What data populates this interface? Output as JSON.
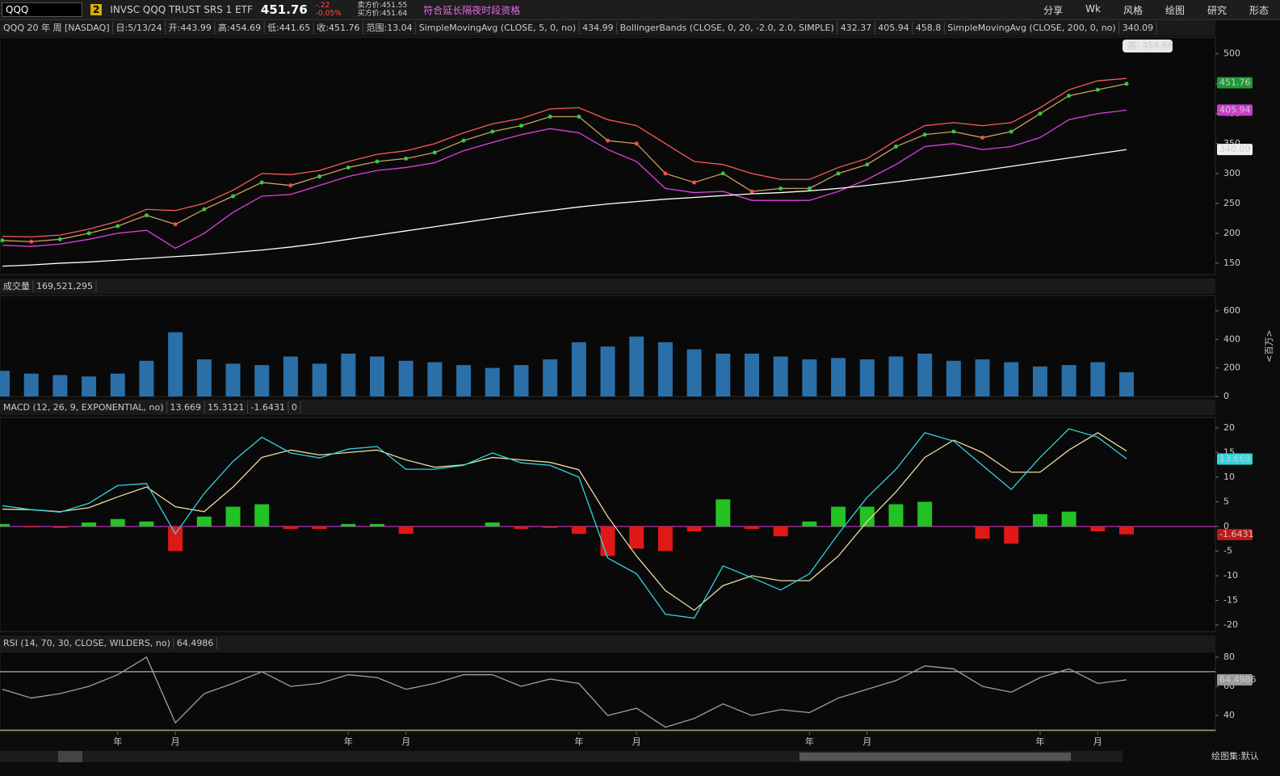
{
  "toolbar": {
    "symbol": "QQQ",
    "link": "2",
    "name": "INVSC QQQ TRUST SRS 1 ETF",
    "last": "451.76",
    "change": "-.22",
    "change_pct": "-0.05%",
    "ask": "卖方价:451.55",
    "bid": "买方价:451.64",
    "ext_hours": "符合延长隔夜时段资格",
    "buttons": [
      "分享",
      "Wk",
      "风格",
      "绘图",
      "研究",
      "形态"
    ]
  },
  "footer": {
    "drawing_set": "绘图集:默认"
  },
  "chart_data": [
    {
      "type": "line",
      "header": {
        "items": [
          {
            "text": "QQQ 20 年 周 [NASDAQ]",
            "color": "#ffffff"
          },
          {
            "text": "日:5/13/24",
            "color": "#cfcfcf"
          },
          {
            "text": "开:443.99",
            "color": "#cfcfcf"
          },
          {
            "text": "高:454.69",
            "color": "#cfcfcf"
          },
          {
            "text": "低:441.65",
            "color": "#cfcfcf"
          },
          {
            "text": "收:451.76",
            "color": "#cfcfcf"
          },
          {
            "text": "范围:13.04",
            "color": "#cfcfcf"
          },
          {
            "text": "SimpleMovingAvg (CLOSE, 5, 0, no)",
            "color": "#e040e0"
          },
          {
            "text": "434.99",
            "color": "#e040e0"
          },
          {
            "text": "BollingerBands (CLOSE, 0, 20, -2.0, 2.0, SIMPLE)",
            "color": "#2fd6e0"
          },
          {
            "text": "432.37",
            "color": "#2fd6e0"
          },
          {
            "text": "405.94",
            "color": "#e040e0"
          },
          {
            "text": "458.8",
            "color": "#ff5a5a"
          },
          {
            "text": "SimpleMovingAvg (CLOSE, 200, 0, no)",
            "color": "#ffffff"
          },
          {
            "text": "340.09",
            "color": "#ffffff"
          }
        ]
      },
      "high_label": "高: 454.69",
      "up_color": "#2ecc40",
      "down_color": "#ff4b4b",
      "ylim": [
        131,
        528
      ],
      "yticks": [
        150,
        200,
        250,
        300,
        350,
        400,
        450,
        500
      ],
      "tags": [
        {
          "value": 451.76,
          "color": "#1f9a35",
          "text_color": "#ffffff"
        },
        {
          "value": 405.94,
          "color": "#c83cc8",
          "text_color": "#ffffff"
        },
        {
          "value": 340.09,
          "color": "#f0f0f0",
          "text_color": "#111111"
        }
      ],
      "series": [
        {
          "color": "#ff5a5a",
          "values": [
            195,
            194,
            197,
            207,
            220,
            240,
            238,
            250,
            272,
            300,
            298,
            305,
            320,
            332,
            338,
            350,
            368,
            383,
            392,
            408,
            410,
            390,
            380,
            350,
            320,
            315,
            300,
            290,
            290,
            310,
            325,
            355,
            380,
            385,
            380,
            385,
            410,
            440,
            455,
            459
          ]
        },
        {
          "color": "#e040e0",
          "values": [
            180,
            178,
            182,
            190,
            200,
            205,
            175,
            200,
            235,
            262,
            265,
            280,
            295,
            305,
            310,
            318,
            338,
            352,
            365,
            375,
            368,
            340,
            320,
            275,
            268,
            270,
            255,
            255,
            255,
            270,
            290,
            315,
            345,
            350,
            340,
            345,
            360,
            390,
            400,
            406
          ]
        },
        {
          "color": "#ffffff",
          "values": [
            145,
            147,
            150,
            152,
            155,
            158,
            161,
            164,
            168,
            172,
            177,
            183,
            190,
            197,
            204,
            211,
            218,
            225,
            232,
            238,
            244,
            249,
            253,
            257,
            260,
            263,
            266,
            268,
            271,
            275,
            280,
            286,
            292,
            298,
            305,
            312,
            319,
            326,
            333,
            340
          ]
        },
        {
          "color": "#c8a060",
          "values": [
            188,
            186,
            190,
            200,
            212,
            230,
            215,
            240,
            262,
            285,
            280,
            295,
            310,
            320,
            325,
            335,
            355,
            370,
            380,
            395,
            395,
            355,
            350,
            300,
            285,
            300,
            270,
            275,
            275,
            300,
            315,
            345,
            365,
            370,
            360,
            370,
            400,
            430,
            440,
            450
          ]
        }
      ]
    },
    {
      "type": "bar",
      "header": {
        "items": [
          {
            "text": "成交量",
            "color": "#ffffff"
          },
          {
            "text": "169,521,295",
            "color": "#cfcfcf"
          }
        ]
      },
      "axis_unit": "<百万>",
      "color": "#2a6fa8",
      "ylim": [
        0,
        707
      ],
      "yticks": [
        0,
        200,
        400,
        600
      ],
      "values": [
        180,
        160,
        150,
        140,
        160,
        250,
        450,
        260,
        230,
        220,
        280,
        230,
        300,
        280,
        250,
        240,
        220,
        200,
        220,
        260,
        380,
        350,
        420,
        380,
        330,
        300,
        300,
        280,
        260,
        270,
        260,
        280,
        300,
        250,
        260,
        240,
        210,
        220,
        240,
        170
      ]
    },
    {
      "type": "line",
      "header": {
        "items": [
          {
            "text": "MACD (12, 26, 9, EXPONENTIAL, no)",
            "color": "#2fd6e0"
          },
          {
            "text": "13.669",
            "color": "#2fd6e0"
          },
          {
            "text": "15.3121",
            "color": "#f0d9a0"
          },
          {
            "text": "-1.6431",
            "color": "#d02020"
          },
          {
            "text": "0",
            "color": "#e040e0"
          }
        ]
      },
      "ylim": [
        -21.3,
        22.1
      ],
      "yticks": [
        -20,
        -15,
        -10,
        -5,
        0,
        5,
        10,
        15,
        20
      ],
      "zero_line_color": "#e040e0",
      "pos_color": "#22c322",
      "neg_color": "#e01818",
      "tags": [
        {
          "value": 13.669,
          "color": "#2fd6e0",
          "text_color": "#111111"
        },
        {
          "value": -1.6431,
          "color": "#c01818",
          "text_color": "#ffffff"
        }
      ],
      "series": [
        {
          "type": "bar",
          "values": [
            0.5,
            -0.2,
            -0.3,
            0.8,
            1.5,
            1,
            -5,
            2,
            4,
            4.5,
            -0.5,
            -0.5,
            0.5,
            0.5,
            -1.5,
            0,
            0,
            0.8,
            -0.5,
            -0.3,
            -1.5,
            -6,
            -4.5,
            -5,
            -1,
            5.5,
            -0.5,
            -2,
            1,
            4,
            4,
            4.5,
            5,
            0,
            -2.5,
            -3.5,
            2.5,
            3,
            -1,
            -1.6
          ]
        },
        {
          "color": "#f0d9a0",
          "values": [
            3.5,
            3.4,
            3,
            3.8,
            6,
            8,
            4,
            3,
            8,
            14,
            15.5,
            14.5,
            15,
            15.5,
            13.5,
            12,
            12.5,
            14,
            13.5,
            13,
            11.5,
            2,
            -6,
            -13,
            -17,
            -12,
            -10,
            -11,
            -11,
            -6,
            1,
            7,
            14,
            17.5,
            15,
            11,
            11,
            15.5,
            19,
            15.3
          ]
        },
        {
          "color": "#2fd6e0",
          "values": [
            4.2,
            3.4,
            2.9,
            4.7,
            8.3,
            8.7,
            -1.5,
            6.7,
            13.2,
            18.1,
            14.9,
            13.9,
            15.7,
            16.2,
            11.6,
            11.6,
            12.4,
            14.9,
            12.9,
            12.4,
            10,
            -6.4,
            -9.6,
            -17.8,
            -18.6,
            -8,
            -10.4,
            -12.9,
            -9.6,
            -1.5,
            5.9,
            11.6,
            19,
            17.3,
            12.4,
            7.5,
            14,
            19.8,
            18.1,
            13.7
          ]
        }
      ]
    },
    {
      "type": "line",
      "header": {
        "items": [
          {
            "text": "RSI (14, 70, 30, CLOSE, WILDERS, no)",
            "color": "#cfcfcf"
          },
          {
            "text": "64.4986",
            "color": "#cfcfcf"
          }
        ]
      },
      "levels": [
        30,
        70
      ],
      "level_color": "#e8d8a0",
      "ylim": [
        29,
        83.8
      ],
      "yticks": [
        40,
        60,
        80
      ],
      "tags": [
        {
          "value": 64.4986,
          "color": "#9a9a9a",
          "text_color": "#111111"
        }
      ],
      "categories": [
        null,
        null,
        null,
        null,
        "年",
        null,
        "月",
        null,
        null,
        null,
        null,
        null,
        "年",
        null,
        "月",
        null,
        null,
        null,
        null,
        null,
        "年",
        null,
        "月",
        null,
        null,
        null,
        null,
        null,
        "年",
        null,
        "月",
        null,
        null,
        null,
        null,
        null,
        "年",
        null,
        "月",
        null
      ],
      "series": [
        {
          "color": "#a0a0a0",
          "values": [
            58,
            52,
            55,
            60,
            68,
            80,
            35,
            55,
            62,
            70,
            60,
            62,
            68,
            66,
            58,
            62,
            68,
            68,
            60,
            65,
            62,
            40,
            45,
            32,
            38,
            48,
            40,
            44,
            42,
            52,
            58,
            64,
            74,
            72,
            60,
            56,
            66,
            72,
            62,
            64.5
          ]
        }
      ]
    }
  ]
}
